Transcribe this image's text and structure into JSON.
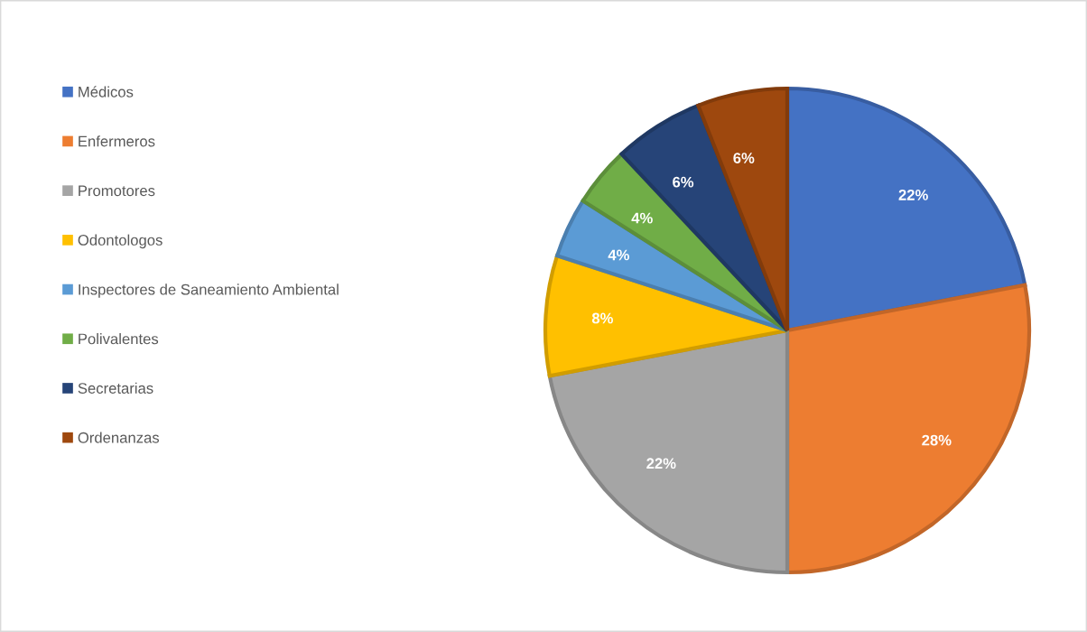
{
  "chart_data": {
    "type": "pie",
    "categories": [
      "Médicos",
      "Enfermeros",
      "Promotores",
      "Odontologos",
      "Inspectores de Saneamiento Ambiental",
      "Polivalentes",
      "Secretarias",
      "Ordenanzas"
    ],
    "values": [
      22,
      28,
      22,
      8,
      4,
      4,
      6,
      6
    ],
    "colors": [
      "#4472c4",
      "#ed7d31",
      "#a5a5a5",
      "#ffc000",
      "#5b9bd5",
      "#70ad47",
      "#264478",
      "#9e480e"
    ],
    "value_labels": [
      "22%",
      "28%",
      "22%",
      "8%",
      "4%",
      "4%",
      "6%",
      "6%"
    ],
    "legend": "left"
  }
}
